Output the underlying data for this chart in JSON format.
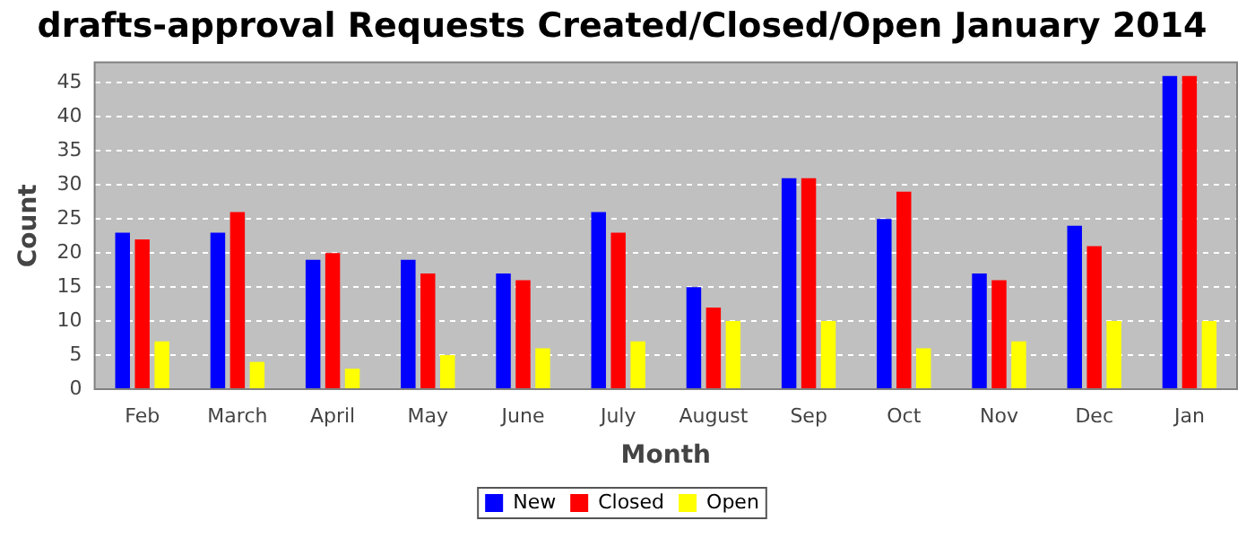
{
  "chart_data": {
    "type": "bar",
    "title": "drafts-approval Requests Created/Closed/Open January 2014",
    "xlabel": "Month",
    "ylabel": "Count",
    "categories": [
      "Feb",
      "March",
      "April",
      "May",
      "June",
      "July",
      "August",
      "Sep",
      "Oct",
      "Nov",
      "Dec",
      "Jan"
    ],
    "series": [
      {
        "name": "New",
        "color": "#0000ff",
        "values": [
          23,
          23,
          19,
          19,
          17,
          26,
          15,
          31,
          25,
          17,
          24,
          46
        ]
      },
      {
        "name": "Closed",
        "color": "#ff0000",
        "values": [
          22,
          26,
          20,
          17,
          16,
          23,
          12,
          31,
          29,
          16,
          21,
          46
        ]
      },
      {
        "name": "Open",
        "color": "#ffff00",
        "values": [
          7,
          4,
          3,
          5,
          6,
          7,
          10,
          10,
          6,
          7,
          10,
          10
        ]
      }
    ],
    "ylim": [
      0,
      48
    ],
    "yticks": [
      0,
      5,
      10,
      15,
      20,
      25,
      30,
      35,
      40,
      45
    ],
    "grid": "y",
    "legend": "bottom"
  }
}
